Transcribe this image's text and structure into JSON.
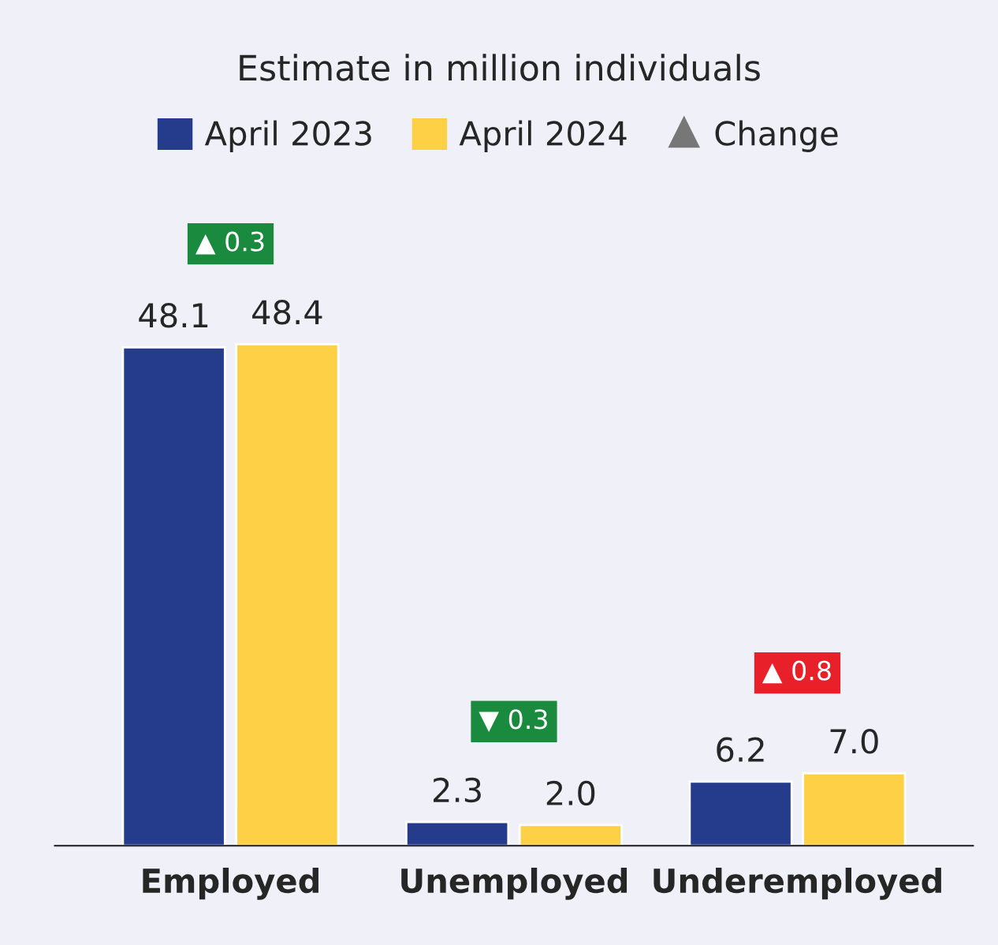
{
  "chart_data": {
    "type": "bar",
    "title": "Estimate in million individuals",
    "categories": [
      "Employed",
      "Unemployed",
      "Underemployed"
    ],
    "series": [
      {
        "name": "April 2023",
        "color": "#253c8c",
        "values": [
          48.1,
          2.3,
          6.2
        ],
        "value_labels": [
          "48.1",
          "2.3",
          "6.2"
        ]
      },
      {
        "name": "April 2024",
        "color": "#fdd046",
        "values": [
          48.4,
          2.0,
          7.0
        ],
        "value_labels": [
          "48.4",
          "2.0",
          "7.0"
        ]
      },
      {
        "name": "Change",
        "color": "#777777",
        "type": "scatter",
        "marker": "triangle",
        "values": [
          null,
          null,
          null
        ]
      }
    ],
    "legend": "top",
    "grid": false,
    "annotations": [
      "▲ 0.3",
      "▼ 0.3",
      "▲ 0.8"
    ]
  }
}
